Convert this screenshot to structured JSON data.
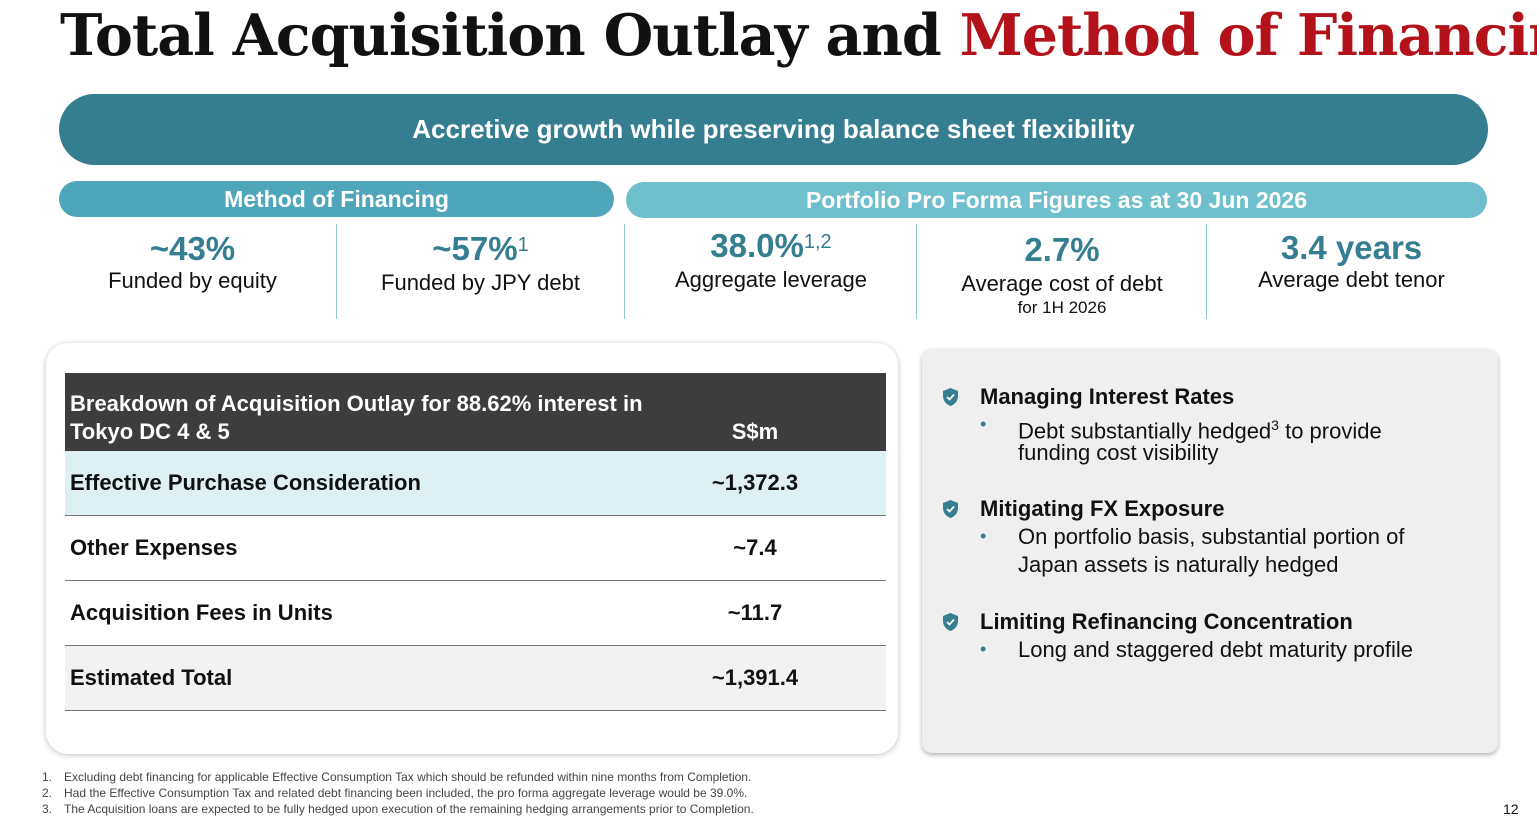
{
  "title": {
    "part1": "Total Acquisition Outlay and ",
    "part2": "Method of Financing",
    "accent_color": "#b3121a"
  },
  "banner": {
    "text": "Accretive growth while preserving balance sheet flexibility",
    "color": "#357d90"
  },
  "financing": {
    "header": "Method of Financing",
    "stats": [
      {
        "value": "~43%",
        "sup": "",
        "label": "Funded by equity"
      },
      {
        "value": "~57%",
        "sup": "1",
        "label": "Funded by JPY debt"
      }
    ]
  },
  "pro_forma": {
    "header": "Portfolio Pro Forma Figures as at 30 Jun 2026",
    "stats": [
      {
        "value": "38.0%",
        "sup": "1,2",
        "label": "Aggregate leverage",
        "sub": ""
      },
      {
        "value": "2.7%",
        "sup": "",
        "label": "Average cost of debt",
        "sub": "for 1H 2026"
      },
      {
        "value": "3.4 years",
        "sup": "",
        "label": "Average debt tenor",
        "sub": ""
      }
    ]
  },
  "table": {
    "header_label": "Breakdown of Acquisition Outlay for 88.62% interest in Tokyo DC 4 & 5",
    "header_unit": "S$m",
    "rows": [
      {
        "label": "Effective Purchase Consideration",
        "value": "~1,372.3"
      },
      {
        "label": "Other Expenses",
        "value": "~7.4"
      },
      {
        "label": "Acquisition Fees in Units",
        "value": "~11.7"
      },
      {
        "label": "Estimated Total",
        "value": "~1,391.4"
      }
    ]
  },
  "points": [
    {
      "title": "Managing Interest Rates",
      "bullet_pre": "Debt substantially hedged",
      "bullet_sup": "3",
      "bullet_post": " to provide",
      "bullet_line2": "funding cost visibility"
    },
    {
      "title": "Mitigating FX Exposure",
      "bullet_pre": "On portfolio basis, substantial portion of",
      "bullet_sup": "",
      "bullet_post": "",
      "bullet_line2": "Japan assets is naturally hedged"
    },
    {
      "title": "Limiting Refinancing Concentration",
      "bullet_pre": "Long and staggered debt maturity profile",
      "bullet_sup": "",
      "bullet_post": "",
      "bullet_line2": ""
    }
  ],
  "footnotes": [
    {
      "num": "1.",
      "text": "Excluding debt financing for applicable Effective Consumption Tax which should be refunded within nine months from Completion."
    },
    {
      "num": "2.",
      "text": "Had the Effective Consumption Tax and related debt financing been included, the pro forma aggregate leverage would be 39.0%."
    },
    {
      "num": "3.",
      "text": "The Acquisition loans are expected to be fully hedged upon execution of the remaining hedging arrangements prior to Completion."
    }
  ],
  "page_number": "12",
  "icons": {
    "point": "shield-check-icon"
  }
}
